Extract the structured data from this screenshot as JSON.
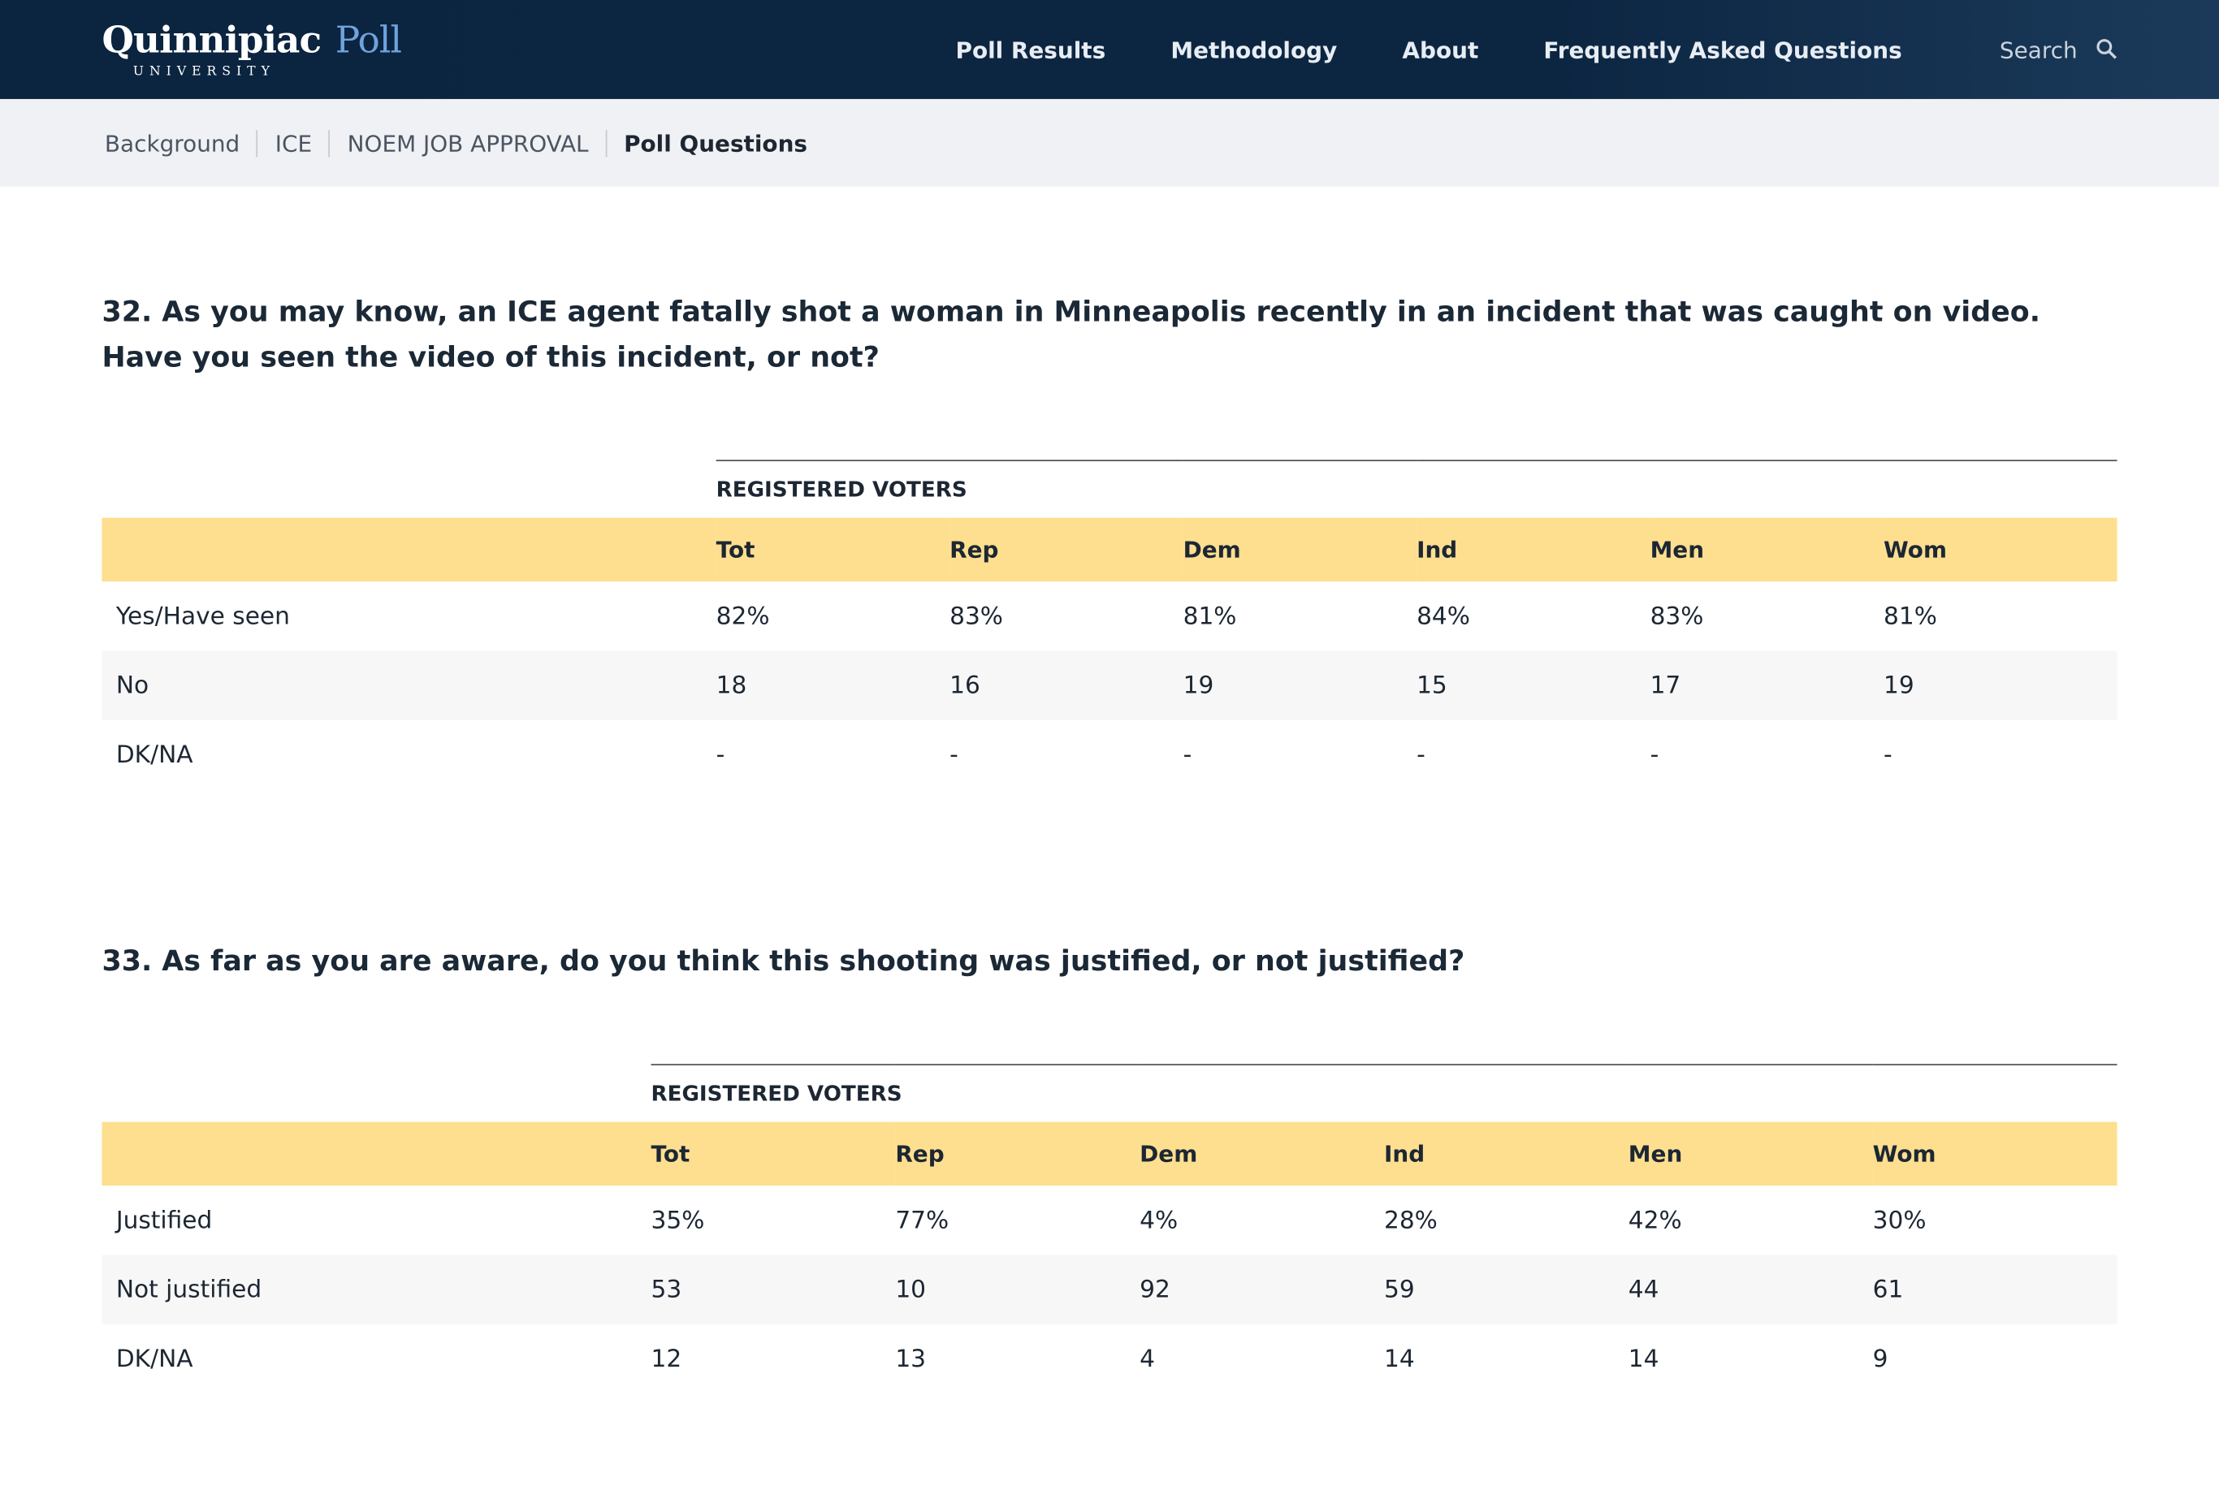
{
  "nav": {
    "logo": "Quinnipiac",
    "logo_sub": "UNIVERSITY",
    "logo_poll": "Poll",
    "links": [
      "Poll Results",
      "Methodology",
      "About",
      "Frequently Asked Questions"
    ],
    "search": "Search"
  },
  "breadcrumbs": [
    "Background",
    "ICE",
    "NOEM JOB APPROVAL",
    "Poll Questions"
  ],
  "questions": [
    {
      "text": "32. As you may know, an ICE agent fatally shot a woman in Minneapolis recently in an incident that was caught on video. Have you seen the video of this incident, or not?",
      "group": "REGISTERED VOTERS",
      "columns": [
        "Tot",
        "Rep",
        "Dem",
        "Ind",
        "Men",
        "Wom"
      ],
      "rows": [
        [
          "Yes/Have seen",
          "82%",
          "83%",
          "81%",
          "84%",
          "83%",
          "81%"
        ],
        [
          "No",
          "18",
          "16",
          "19",
          "15",
          "17",
          "19"
        ],
        [
          "DK/NA",
          "-",
          "-",
          "-",
          "-",
          "-",
          "-"
        ]
      ]
    },
    {
      "text": "33. As far as you are aware, do you think this shooting was justified, or not justified?",
      "group": "REGISTERED VOTERS",
      "columns": [
        "Tot",
        "Rep",
        "Dem",
        "Ind",
        "Men",
        "Wom"
      ],
      "rows": [
        [
          "Justified",
          "35%",
          "77%",
          "4%",
          "28%",
          "42%",
          "30%"
        ],
        [
          "Not justified",
          "53",
          "10",
          "92",
          "59",
          "44",
          "61"
        ],
        [
          "DK/NA",
          "12",
          "13",
          "4",
          "14",
          "14",
          "9"
        ]
      ]
    }
  ]
}
